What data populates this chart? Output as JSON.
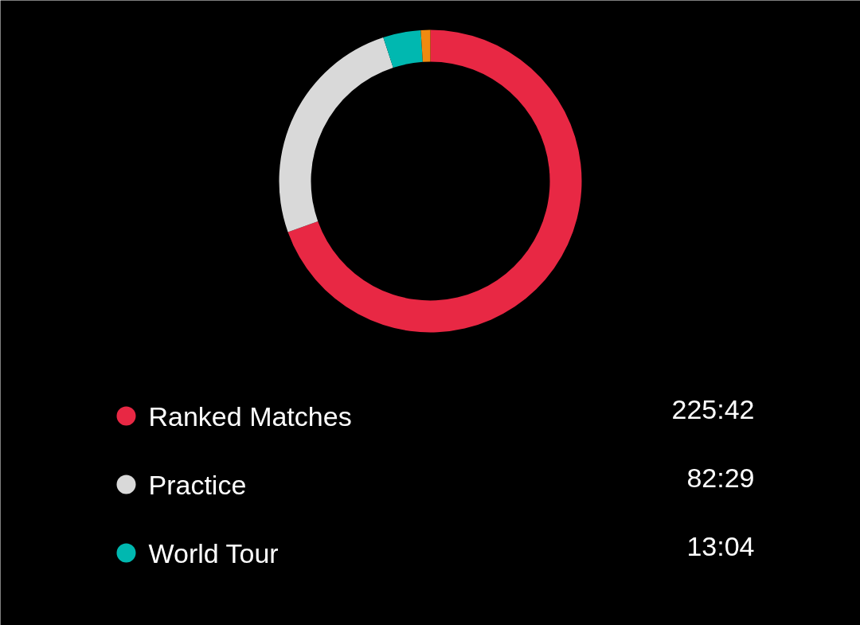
{
  "chart_data": {
    "type": "donut",
    "categories": [
      "Ranked Matches",
      "Practice",
      "World Tour",
      null
    ],
    "values": [
      225.7,
      82.48,
      13.07,
      3.3
    ],
    "colors": [
      "#e82844",
      "#d9d9d9",
      "#00b8b0",
      "#f08a10"
    ],
    "value_labels": [
      "225:42",
      "82:29",
      "13:04",
      null
    ],
    "legend": "bottom"
  }
}
